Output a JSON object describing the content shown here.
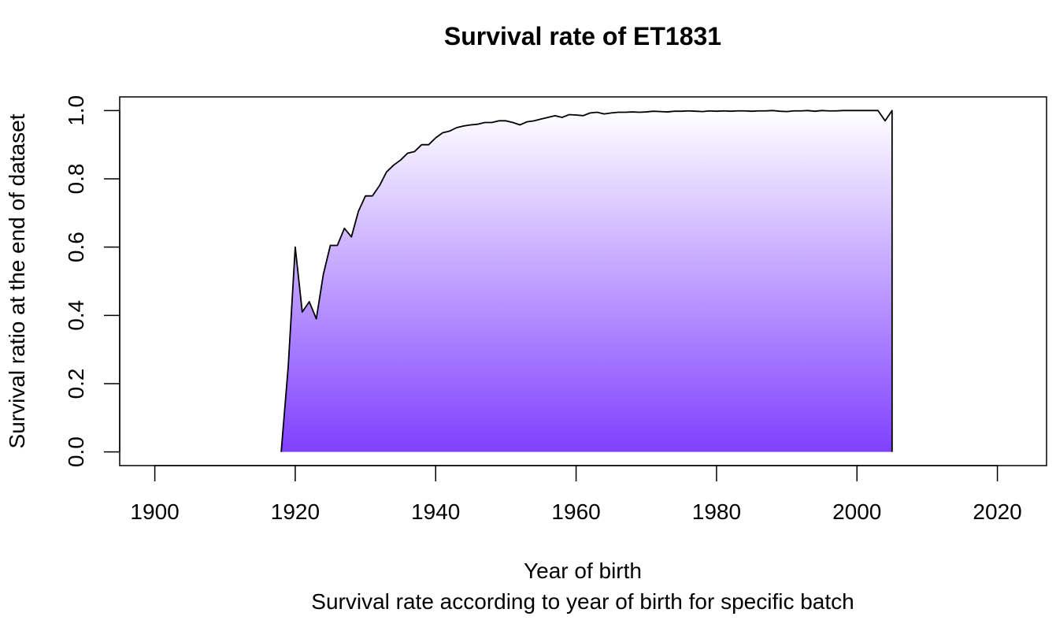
{
  "chart_data": {
    "type": "area",
    "title": "Survival rate of ET1831",
    "xlabel": "Year of birth",
    "subtitle": "Survival rate according to year of birth for specific batch",
    "ylabel": "Survival ratio at the end of dataset",
    "xlim": [
      1895,
      2027
    ],
    "ylim": [
      -0.04,
      1.04
    ],
    "x_ticks": [
      1900,
      1920,
      1940,
      1960,
      1980,
      2000,
      2020
    ],
    "x_tick_labels": [
      "1900",
      "1920",
      "1940",
      "1960",
      "1980",
      "2000",
      "2020"
    ],
    "y_ticks": [
      0.0,
      0.2,
      0.4,
      0.6,
      0.8,
      1.0
    ],
    "y_tick_labels": [
      "0.0",
      "0.2",
      "0.4",
      "0.6",
      "0.8",
      "1.0"
    ],
    "fill_gradient": {
      "top": "#ffffff",
      "bottom": "#8040ff"
    },
    "line_color": "#000000",
    "x": [
      1918,
      1919,
      1920,
      1921,
      1922,
      1923,
      1924,
      1925,
      1926,
      1927,
      1928,
      1929,
      1930,
      1931,
      1932,
      1933,
      1934,
      1935,
      1936,
      1937,
      1938,
      1939,
      1940,
      1941,
      1942,
      1943,
      1944,
      1945,
      1946,
      1947,
      1948,
      1949,
      1950,
      1951,
      1952,
      1953,
      1954,
      1955,
      1956,
      1957,
      1958,
      1959,
      1960,
      1961,
      1962,
      1963,
      1964,
      1965,
      1966,
      1967,
      1968,
      1969,
      1970,
      1971,
      1972,
      1973,
      1974,
      1975,
      1976,
      1977,
      1978,
      1979,
      1980,
      1981,
      1982,
      1983,
      1984,
      1985,
      1986,
      1987,
      1988,
      1989,
      1990,
      1991,
      1992,
      1993,
      1994,
      1995,
      1996,
      1997,
      1998,
      1999,
      2000,
      2001,
      2002,
      2003,
      2004,
      2005
    ],
    "y": [
      0.0,
      0.25,
      0.6,
      0.41,
      0.44,
      0.39,
      0.52,
      0.605,
      0.605,
      0.655,
      0.63,
      0.705,
      0.75,
      0.75,
      0.78,
      0.82,
      0.84,
      0.855,
      0.875,
      0.88,
      0.9,
      0.9,
      0.92,
      0.935,
      0.94,
      0.95,
      0.955,
      0.958,
      0.96,
      0.965,
      0.965,
      0.97,
      0.97,
      0.965,
      0.958,
      0.967,
      0.97,
      0.975,
      0.98,
      0.985,
      0.98,
      0.988,
      0.987,
      0.985,
      0.993,
      0.995,
      0.99,
      0.993,
      0.995,
      0.995,
      0.996,
      0.995,
      0.996,
      0.998,
      0.997,
      0.996,
      0.998,
      0.998,
      0.999,
      0.998,
      0.997,
      0.999,
      0.998,
      0.999,
      0.998,
      0.999,
      0.999,
      0.998,
      0.999,
      0.999,
      1.0,
      0.998,
      0.997,
      0.999,
      0.999,
      1.0,
      0.998,
      1.0,
      0.999,
      0.999,
      1.0,
      1.0,
      1.0,
      1.0,
      1.0,
      1.0,
      0.97,
      1.0
    ]
  }
}
